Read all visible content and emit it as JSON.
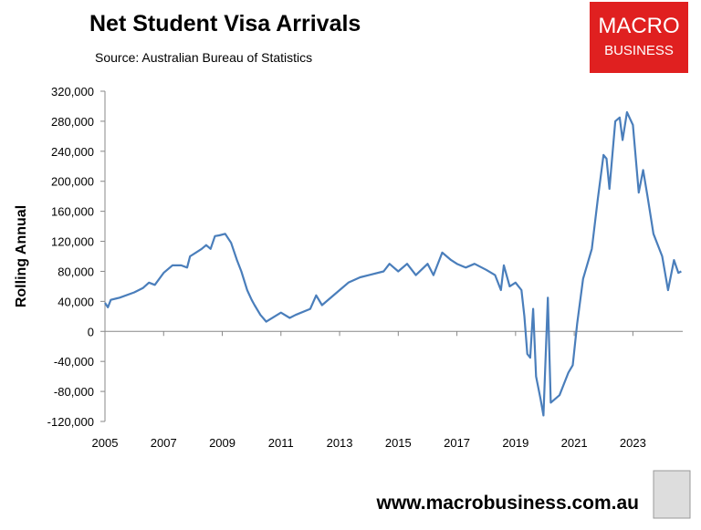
{
  "chart_data": {
    "type": "line",
    "title": "Net Student Visa Arrivals",
    "subtitle": "Source: Australian Bureau of Statistics",
    "y_label": "Rolling Annual",
    "logo": [
      "MACRO",
      "BUSINESS"
    ],
    "footer": "www.macrobusiness.com.au",
    "x": [
      2005.0,
      2005.1,
      2005.2,
      2005.5,
      2006.0,
      2006.3,
      2006.5,
      2006.7,
      2007.0,
      2007.3,
      2007.6,
      2007.8,
      2007.9,
      2008.1,
      2008.3,
      2008.45,
      2008.6,
      2008.75,
      2008.9,
      2009.1,
      2009.3,
      2009.5,
      2009.65,
      2009.85,
      2010.0,
      2010.1,
      2010.3,
      2010.5,
      2011.0,
      2011.3,
      2011.5,
      2012.0,
      2012.2,
      2012.4,
      2013.0,
      2013.3,
      2013.7,
      2014.0,
      2014.5,
      2014.7,
      2015.0,
      2015.3,
      2015.6,
      2016.0,
      2016.2,
      2016.5,
      2016.8,
      2017.0,
      2017.3,
      2017.6,
      2018.0,
      2018.3,
      2018.5,
      2018.6,
      2018.8,
      2019.0,
      2019.2,
      2019.3,
      2019.4,
      2019.5,
      2019.6,
      2019.7,
      2019.85,
      2019.95,
      2020.1,
      2020.2,
      2020.5,
      2020.8,
      2020.95,
      2021.1,
      2021.3,
      2021.6,
      2021.8,
      2022.0,
      2022.1,
      2022.2,
      2022.4,
      2022.55,
      2022.65,
      2022.8,
      2023.0,
      2023.2,
      2023.35,
      2023.5,
      2023.7,
      2024.0,
      2024.2,
      2024.4,
      2024.55,
      2024.65
    ],
    "series": [
      {
        "name": "Net student visa arrivals",
        "color": "#4a7ebb",
        "values": [
          38000,
          32000,
          42000,
          45000,
          52000,
          58000,
          65000,
          62000,
          78000,
          88000,
          88000,
          85000,
          100000,
          105000,
          110000,
          115000,
          110000,
          127000,
          128000,
          130000,
          118000,
          95000,
          80000,
          55000,
          42000,
          35000,
          22000,
          13000,
          25000,
          18000,
          22000,
          30000,
          48000,
          35000,
          55000,
          65000,
          72000,
          75000,
          80000,
          90000,
          80000,
          90000,
          75000,
          90000,
          75000,
          105000,
          95000,
          90000,
          85000,
          90000,
          82000,
          75000,
          55000,
          88000,
          60000,
          65000,
          55000,
          20000,
          -30000,
          -35000,
          30000,
          -60000,
          -90000,
          -112000,
          45000,
          -95000,
          -85000,
          -55000,
          -45000,
          10000,
          70000,
          110000,
          175000,
          235000,
          230000,
          190000,
          280000,
          285000,
          255000,
          292000,
          275000,
          185000,
          215000,
          180000,
          130000,
          100000,
          55000,
          95000,
          78000,
          80000
        ]
      }
    ],
    "xlim": [
      2005,
      2024.7
    ],
    "xticks": [
      2005,
      2007,
      2009,
      2011,
      2013,
      2015,
      2017,
      2019,
      2021,
      2023
    ],
    "ylim": [
      -120000,
      320000
    ],
    "yticks": [
      {
        "value": -120000,
        "label": "-120,000"
      },
      {
        "value": -80000,
        "label": "-80,000"
      },
      {
        "value": -40000,
        "label": "-40,000"
      },
      0,
      {
        "value": 40000,
        "label": "40,000"
      },
      {
        "value": 80000,
        "label": "80,000"
      },
      {
        "value": 120000,
        "label": "120,000"
      },
      {
        "value": 160000,
        "label": "160,000"
      },
      {
        "value": 200000,
        "label": "200,000"
      },
      {
        "value": 240000,
        "label": "240,000"
      },
      {
        "value": 280000,
        "label": "280,000"
      },
      {
        "value": 320000,
        "label": "320,000"
      }
    ],
    "grid": false
  }
}
